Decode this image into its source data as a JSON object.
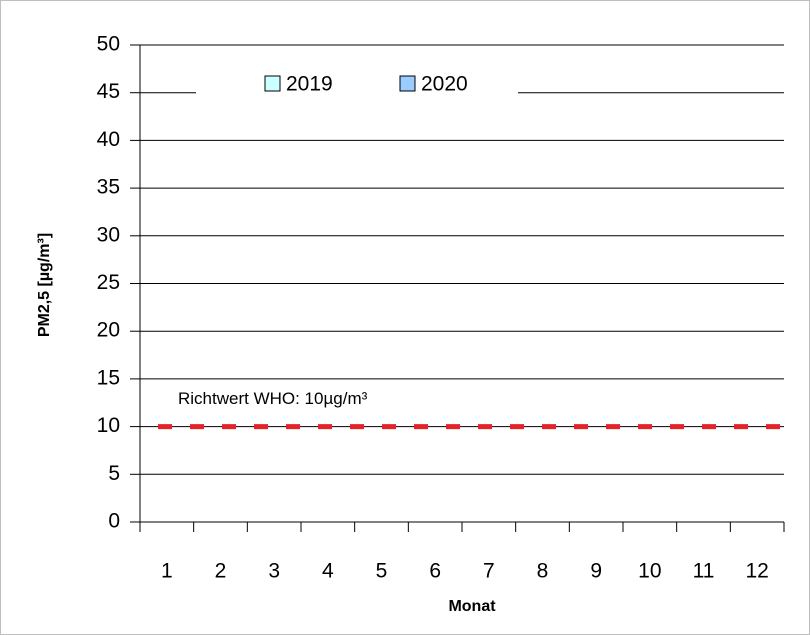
{
  "chart_data": {
    "type": "bar",
    "categories": [
      1,
      2,
      3,
      4,
      5,
      6,
      7,
      8,
      9,
      10,
      11,
      12
    ],
    "series": [
      {
        "name": "2019",
        "color": "#ccffff",
        "values": [
          null,
          null,
          null,
          null,
          null,
          null,
          null,
          null,
          null,
          null,
          null,
          null
        ]
      },
      {
        "name": "2020",
        "color": "#99ccff",
        "values": [
          null,
          null,
          null,
          null,
          null,
          null,
          null,
          null,
          null,
          null,
          null,
          null
        ]
      }
    ],
    "x_label": "Monat",
    "y_label": "PM2,5 [µg/m³]",
    "ylim": [
      0,
      50
    ],
    "yticks": [
      0,
      5,
      10,
      15,
      20,
      25,
      30,
      35,
      40,
      45,
      50
    ],
    "grid": true,
    "legend": "top",
    "reference_line": {
      "value": 10,
      "label": "Richtwert WHO: 10µg/m³",
      "color": "#e8202a"
    }
  }
}
